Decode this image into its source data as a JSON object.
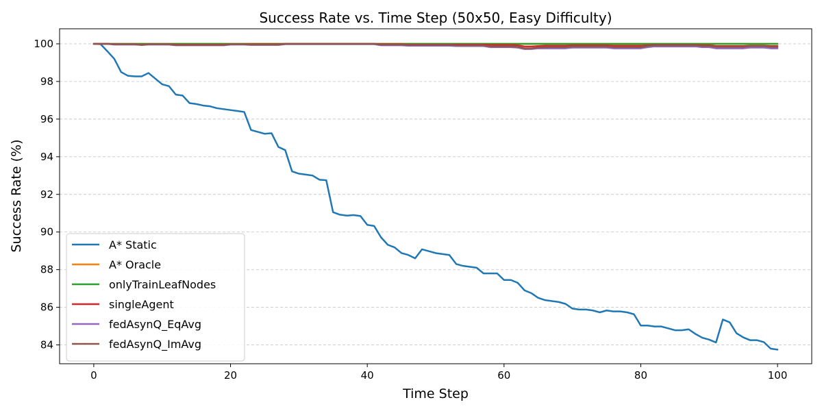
{
  "chart_data": {
    "type": "line",
    "title": "Success Rate vs. Time Step (50x50, Easy Difficulty)",
    "xlabel": "Time Step",
    "ylabel": "Success Rate (%)",
    "xlim": [
      -5,
      105
    ],
    "ylim": [
      83,
      100.8
    ],
    "xticks": [
      0,
      20,
      40,
      60,
      80,
      100
    ],
    "yticks": [
      84,
      86,
      88,
      90,
      92,
      94,
      96,
      98,
      100
    ],
    "grid": "horizontal-dashed",
    "legend_position": "lower-left",
    "x": [
      0,
      1,
      2,
      3,
      4,
      5,
      6,
      7,
      8,
      9,
      10,
      11,
      12,
      13,
      14,
      15,
      16,
      17,
      18,
      19,
      20,
      21,
      22,
      23,
      24,
      25,
      26,
      27,
      28,
      29,
      30,
      31,
      32,
      33,
      34,
      35,
      36,
      37,
      38,
      39,
      40,
      41,
      42,
      43,
      44,
      45,
      46,
      47,
      48,
      49,
      50,
      51,
      52,
      53,
      54,
      55,
      56,
      57,
      58,
      59,
      60,
      61,
      62,
      63,
      64,
      65,
      66,
      67,
      68,
      69,
      70,
      71,
      72,
      73,
      74,
      75,
      76,
      77,
      78,
      79,
      80,
      81,
      82,
      83,
      84,
      85,
      86,
      87,
      88,
      89,
      90,
      91,
      92,
      93,
      94,
      95,
      96,
      97,
      98,
      99,
      100
    ],
    "series": [
      {
        "name": "A* Static",
        "color": "#1f77b4",
        "values": [
          100.0,
          99.98,
          99.6,
          99.2,
          98.5,
          98.3,
          98.27,
          98.27,
          98.45,
          98.15,
          97.85,
          97.75,
          97.3,
          97.25,
          96.85,
          96.8,
          96.72,
          96.68,
          96.58,
          96.53,
          96.48,
          96.43,
          96.38,
          95.42,
          95.32,
          95.22,
          95.25,
          94.52,
          94.35,
          93.22,
          93.1,
          93.05,
          93.0,
          92.78,
          92.75,
          91.05,
          90.92,
          90.87,
          90.9,
          90.85,
          90.38,
          90.32,
          89.72,
          89.32,
          89.18,
          88.88,
          88.78,
          88.6,
          89.08,
          88.98,
          88.88,
          88.83,
          88.78,
          88.3,
          88.2,
          88.15,
          88.1,
          87.8,
          87.8,
          87.8,
          87.45,
          87.45,
          87.3,
          86.9,
          86.75,
          86.5,
          86.38,
          86.33,
          86.28,
          86.18,
          85.93,
          85.88,
          85.88,
          85.83,
          85.73,
          85.83,
          85.78,
          85.78,
          85.73,
          85.63,
          85.03,
          85.03,
          84.98,
          84.98,
          84.88,
          84.78,
          84.78,
          84.83,
          84.58,
          84.38,
          84.28,
          84.13,
          85.35,
          85.2,
          84.62,
          84.4,
          84.25,
          84.25,
          84.15,
          83.8,
          83.75
        ]
      },
      {
        "name": "A* Oracle",
        "color": "#ff7f0e",
        "values": [
          100,
          100,
          100,
          100,
          100,
          100,
          100,
          100,
          100,
          100,
          100,
          100,
          100,
          100,
          100,
          100,
          100,
          100,
          100,
          100,
          100,
          100,
          100,
          100,
          100,
          100,
          100,
          100,
          100,
          100,
          100,
          100,
          100,
          100,
          100,
          100,
          100,
          100,
          100,
          100,
          100,
          100,
          100,
          100,
          100,
          100,
          100,
          100,
          100,
          100,
          100,
          100,
          100,
          100,
          100,
          100,
          100,
          100,
          100,
          100,
          100,
          100,
          100,
          100,
          100,
          100,
          100,
          100,
          100,
          100,
          100,
          100,
          100,
          100,
          100,
          100,
          100,
          100,
          100,
          100,
          100,
          100,
          100,
          100,
          100,
          100,
          100,
          100,
          100,
          100,
          100,
          100,
          100,
          100,
          100,
          100,
          100,
          100,
          100,
          100,
          100
        ]
      },
      {
        "name": "onlyTrainLeafNodes",
        "color": "#2ca02c",
        "values": [
          100,
          100,
          100,
          100,
          100,
          100,
          100,
          100,
          100,
          100,
          100,
          100,
          100,
          100,
          100,
          100,
          100,
          100,
          100,
          100,
          100,
          100,
          100,
          100,
          100,
          100,
          100,
          100,
          100,
          100,
          100,
          100,
          100,
          100,
          100,
          100,
          100,
          100,
          100,
          100,
          100,
          100,
          100,
          100,
          100,
          100,
          100,
          100,
          100,
          100,
          100,
          100,
          100,
          100,
          100,
          100,
          100,
          100,
          100,
          100,
          100,
          100,
          100,
          100,
          100,
          100,
          100,
          100,
          100,
          100,
          100,
          100,
          100,
          100,
          100,
          100,
          100,
          100,
          100,
          100,
          100,
          100,
          100,
          100,
          100,
          100,
          100,
          100,
          100,
          100,
          100,
          100,
          100,
          100,
          100,
          100,
          100,
          100,
          100,
          100,
          100
        ]
      },
      {
        "name": "singleAgent",
        "color": "#d62728",
        "values": [
          100,
          100,
          100,
          99.98,
          99.98,
          99.98,
          99.98,
          99.96,
          99.98,
          99.98,
          99.98,
          99.98,
          99.96,
          99.96,
          99.96,
          99.96,
          99.96,
          99.96,
          99.96,
          99.96,
          99.98,
          99.98,
          99.98,
          99.98,
          99.98,
          99.98,
          99.98,
          99.98,
          100,
          100,
          100,
          100,
          100,
          100,
          100,
          100,
          100,
          100,
          100,
          100,
          100,
          100,
          99.98,
          99.98,
          99.98,
          99.98,
          99.96,
          99.96,
          99.96,
          99.96,
          99.96,
          99.96,
          99.96,
          99.96,
          99.96,
          99.96,
          99.96,
          99.96,
          99.94,
          99.94,
          99.94,
          99.94,
          99.92,
          99.86,
          99.86,
          99.88,
          99.9,
          99.9,
          99.9,
          99.9,
          99.92,
          99.92,
          99.92,
          99.92,
          99.92,
          99.92,
          99.9,
          99.9,
          99.9,
          99.9,
          99.9,
          99.92,
          99.94,
          99.94,
          99.94,
          99.94,
          99.94,
          99.94,
          99.94,
          99.92,
          99.92,
          99.88,
          99.88,
          99.88,
          99.88,
          99.88,
          99.9,
          99.9,
          99.9,
          99.88,
          99.88
        ]
      },
      {
        "name": "fedAsynQ_EqAvg",
        "color": "#9467bd",
        "values": [
          100,
          100,
          100,
          99.96,
          99.96,
          99.96,
          99.96,
          99.94,
          99.96,
          99.96,
          99.96,
          99.96,
          99.92,
          99.92,
          99.92,
          99.92,
          99.92,
          99.92,
          99.92,
          99.92,
          99.96,
          99.96,
          99.96,
          99.94,
          99.94,
          99.94,
          99.94,
          99.94,
          99.98,
          99.98,
          99.98,
          99.98,
          99.98,
          99.98,
          99.98,
          99.98,
          99.98,
          99.98,
          99.98,
          99.98,
          99.98,
          99.98,
          99.92,
          99.92,
          99.92,
          99.92,
          99.9,
          99.9,
          99.9,
          99.9,
          99.9,
          99.9,
          99.9,
          99.88,
          99.88,
          99.88,
          99.88,
          99.88,
          99.82,
          99.82,
          99.82,
          99.82,
          99.8,
          99.72,
          99.72,
          99.76,
          99.76,
          99.76,
          99.76,
          99.76,
          99.8,
          99.8,
          99.8,
          99.8,
          99.8,
          99.8,
          99.76,
          99.76,
          99.76,
          99.76,
          99.76,
          99.82,
          99.86,
          99.86,
          99.86,
          99.86,
          99.86,
          99.86,
          99.86,
          99.82,
          99.82,
          99.76,
          99.76,
          99.76,
          99.76,
          99.76,
          99.8,
          99.8,
          99.8,
          99.76,
          99.76
        ]
      },
      {
        "name": "fedAsynQ_ImAvg",
        "color": "#8c564b",
        "values": [
          100,
          100,
          100,
          99.98,
          99.98,
          99.98,
          99.98,
          99.94,
          99.98,
          99.98,
          99.98,
          99.98,
          99.94,
          99.94,
          99.94,
          99.94,
          99.94,
          99.94,
          99.94,
          99.94,
          99.98,
          99.98,
          99.98,
          99.96,
          99.96,
          99.96,
          99.96,
          99.96,
          100,
          100,
          100,
          100,
          100,
          100,
          100,
          100,
          100,
          100,
          100,
          100,
          100,
          100,
          99.96,
          99.96,
          99.96,
          99.96,
          99.94,
          99.94,
          99.94,
          99.94,
          99.94,
          99.94,
          99.94,
          99.92,
          99.92,
          99.92,
          99.92,
          99.92,
          99.86,
          99.86,
          99.86,
          99.86,
          99.84,
          99.76,
          99.76,
          99.8,
          99.82,
          99.82,
          99.82,
          99.82,
          99.86,
          99.86,
          99.86,
          99.86,
          99.86,
          99.86,
          99.82,
          99.82,
          99.82,
          99.82,
          99.82,
          99.88,
          99.92,
          99.92,
          99.92,
          99.92,
          99.92,
          99.92,
          99.92,
          99.88,
          99.88,
          99.84,
          99.84,
          99.84,
          99.84,
          99.84,
          99.88,
          99.88,
          99.88,
          99.84,
          99.84
        ]
      }
    ]
  }
}
